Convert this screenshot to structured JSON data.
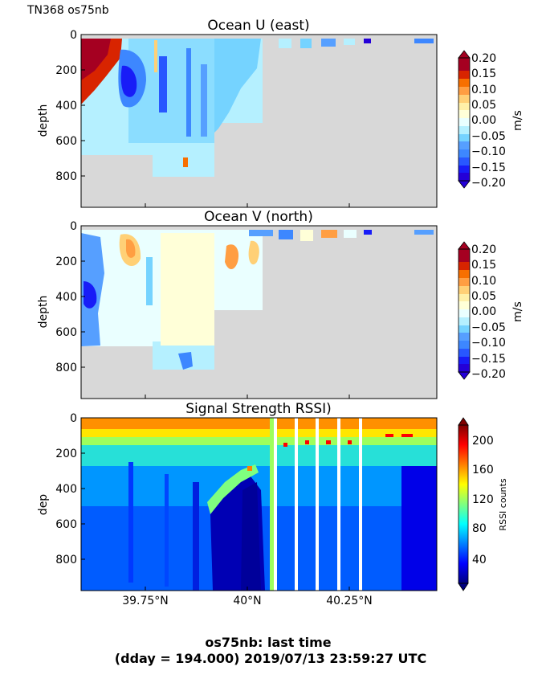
{
  "header": {
    "cruise_label": "TN368 os75nb"
  },
  "footer": {
    "line1": "os75nb: last time",
    "line2": "(dday = 194.000) 2019/07/13 23:59:27 UTC"
  },
  "colors": {
    "nodata": "#d8d8d8",
    "velocity_scale": [
      "#2400d8",
      "#181cf7",
      "#2857ff",
      "#3d87ff",
      "#569fff",
      "#75d3ff",
      "#b5f0ff",
      "#eaffff",
      "#ffffd8",
      "#fff0a8",
      "#ffd076",
      "#ff9e42",
      "#f76f00",
      "#d82400",
      "#a50021"
    ],
    "rssi_scale": [
      "#00007f",
      "#0000ff",
      "#007fff",
      "#00ffff",
      "#7fff7f",
      "#ffff00",
      "#ff7f00",
      "#ff0000",
      "#7f0000"
    ]
  },
  "chart_data": [
    {
      "type": "heatmap",
      "title": "Ocean U (east)",
      "xlabel": "",
      "ylabel": "depth",
      "y_ticks": [
        "0",
        "200",
        "400",
        "600",
        "800"
      ],
      "ylim": [
        960,
        0
      ],
      "xlim": [
        39.592,
        40.46
      ],
      "x_ticks": [],
      "colorbar": {
        "label": "m/s",
        "ticks": [
          "0.20",
          "0.15",
          "0.10",
          "0.05",
          "0.00",
          "−0.05",
          "−0.10",
          "−0.15",
          "−0.20"
        ],
        "range": [
          -0.2,
          0.2
        ],
        "extend": "both"
      },
      "grid": false,
      "features": [
        {
          "name": "strong eastward flow near western edge",
          "x": [
            39.59,
            39.69
          ],
          "depth": [
            30,
            300
          ],
          "value": 0.2
        },
        {
          "name": "westward flow core",
          "x": [
            39.68,
            39.76
          ],
          "depth": [
            100,
            450
          ],
          "value": -0.15
        },
        {
          "name": "narrow westward jets",
          "x": [
            39.78,
            39.82
          ],
          "depth": [
            200,
            350
          ],
          "value": -0.12
        }
      ],
      "data_extent": {
        "bottom_depth_west": 680,
        "max_depth": 870,
        "shallow_coverage_east_of": 40.06
      }
    },
    {
      "type": "heatmap",
      "title": "Ocean V (north)",
      "xlabel": "",
      "ylabel": "depth",
      "y_ticks": [
        "0",
        "200",
        "400",
        "600",
        "800"
      ],
      "ylim": [
        960,
        0
      ],
      "xlim": [
        39.592,
        40.46
      ],
      "x_ticks": [],
      "colorbar": {
        "label": "m/s",
        "ticks": [
          "0.20",
          "0.15",
          "0.10",
          "0.05",
          "0.00",
          "−0.05",
          "−0.10",
          "−0.15",
          "−0.20"
        ],
        "range": [
          -0.2,
          0.2
        ],
        "extend": "both"
      },
      "grid": false,
      "features": [
        {
          "name": "northward flow patch",
          "x": [
            39.69,
            39.73
          ],
          "depth": [
            40,
            200
          ],
          "value": 0.08
        },
        {
          "name": "southward flow at west edge",
          "x": [
            39.59,
            39.65
          ],
          "depth": [
            300,
            450
          ],
          "value": -0.15
        },
        {
          "name": "northward flow patch east",
          "x": [
            39.95,
            40.0
          ],
          "depth": [
            100,
            250
          ],
          "value": 0.08
        }
      ],
      "data_extent": {
        "bottom_depth_west": 680,
        "max_depth": 870,
        "shallow_coverage_east_of": 40.06
      }
    },
    {
      "type": "heatmap",
      "title": "Signal Strength RSSI)",
      "xlabel": "",
      "ylabel": "dep",
      "y_ticks": [
        "0",
        "200",
        "400",
        "600",
        "800"
      ],
      "x_ticks": [
        "39.75°N",
        "40°N",
        "40.25°N"
      ],
      "x_tick_values": [
        39.75,
        40.0,
        40.25
      ],
      "ylim": [
        960,
        0
      ],
      "xlim": [
        39.592,
        40.46
      ],
      "colorbar": {
        "label": "RSSI counts",
        "ticks": [
          "200",
          "160",
          "120",
          "80",
          "40"
        ],
        "range": [
          5,
          225
        ],
        "extend": "both"
      },
      "grid": false,
      "features": [
        {
          "name": "high near-surface returns",
          "depth": [
            40,
            150
          ],
          "value": 170
        },
        {
          "name": "weak returns (deep trough)",
          "x": [
            39.97,
            40.04
          ],
          "depth": [
            350,
            960
          ],
          "value": 25
        }
      ],
      "gaps_x": [
        40.063,
        40.11,
        40.158,
        40.21
      ]
    }
  ]
}
